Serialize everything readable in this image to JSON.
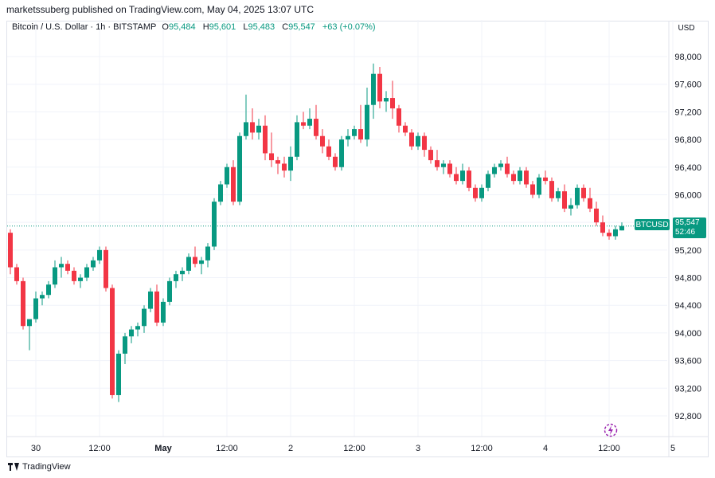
{
  "publisher": "marketssuberg published on TradingView.com, May 04, 2025 13:07 UTC",
  "legend": {
    "symbol": "Bitcoin / U.S. Dollar · 1h · BITSTAMP",
    "o_label": "O",
    "o_value": "95,484",
    "h_label": "H",
    "h_value": "95,601",
    "l_label": "L",
    "l_value": "95,483",
    "c_label": "C",
    "c_value": "95,547",
    "change": "+63 (+0.07%)"
  },
  "currency": "USD",
  "last_price": {
    "symbol": "BTCUSD",
    "price": "95,547",
    "countdown": "52:46"
  },
  "footer": {
    "brand": "TradingView"
  },
  "colors": {
    "up": "#089981",
    "down": "#f23645",
    "grid": "#f0f3fa",
    "axis_text": "#131722"
  },
  "chart_data": {
    "type": "candlestick",
    "ylim": [
      92500,
      98300
    ],
    "y_ticks": [
      92800,
      93200,
      93600,
      94000,
      94400,
      94800,
      95200,
      95600,
      96000,
      96400,
      96800,
      97200,
      97600,
      98000
    ],
    "y_tick_labels": [
      "92,800",
      "93,200",
      "93,600",
      "94,000",
      "94,400",
      "94,800",
      "95,200",
      "95,600",
      "96,000",
      "96,400",
      "96,800",
      "97,200",
      "97,600",
      "98,000"
    ],
    "x_labels": [
      {
        "i": 4,
        "text": "30"
      },
      {
        "i": 14,
        "text": "12:00"
      },
      {
        "i": 24,
        "text": "May"
      },
      {
        "i": 34,
        "text": "12:00"
      },
      {
        "i": 44,
        "text": "2"
      },
      {
        "i": 54,
        "text": "12:00"
      },
      {
        "i": 64,
        "text": "3"
      },
      {
        "i": 74,
        "text": "12:00"
      },
      {
        "i": 84,
        "text": "4"
      },
      {
        "i": 94,
        "text": "12:00"
      },
      {
        "i": 104,
        "text": "5"
      }
    ],
    "last_close": 95547,
    "candles": [
      [
        95450,
        95500,
        94850,
        94950
      ],
      [
        94950,
        95000,
        94700,
        94750
      ],
      [
        94750,
        94800,
        94050,
        94100
      ],
      [
        94100,
        94150,
        93750,
        94200
      ],
      [
        94200,
        94600,
        94150,
        94500
      ],
      [
        94500,
        94600,
        94400,
        94550
      ],
      [
        94550,
        94750,
        94500,
        94700
      ],
      [
        94700,
        95050,
        94650,
        94950
      ],
      [
        94950,
        95100,
        94800,
        95000
      ],
      [
        95000,
        95050,
        94850,
        94900
      ],
      [
        94900,
        94950,
        94700,
        94750
      ],
      [
        94750,
        94850,
        94650,
        94800
      ],
      [
        94800,
        95000,
        94750,
        94950
      ],
      [
        94950,
        95100,
        94900,
        95050
      ],
      [
        95050,
        95250,
        95000,
        95200
      ],
      [
        95200,
        95250,
        94600,
        94650
      ],
      [
        94650,
        94700,
        93050,
        93100
      ],
      [
        93100,
        93750,
        93000,
        93700
      ],
      [
        93700,
        94000,
        93550,
        93950
      ],
      [
        93950,
        94100,
        93850,
        94050
      ],
      [
        94050,
        94150,
        93950,
        94100
      ],
      [
        94100,
        94400,
        94000,
        94350
      ],
      [
        94350,
        94650,
        94300,
        94600
      ],
      [
        94600,
        94700,
        94100,
        94150
      ],
      [
        94150,
        94500,
        94100,
        94450
      ],
      [
        94450,
        94800,
        94400,
        94750
      ],
      [
        94750,
        94900,
        94650,
        94850
      ],
      [
        94850,
        94950,
        94750,
        94900
      ],
      [
        94900,
        95150,
        94850,
        95100
      ],
      [
        95100,
        95250,
        94950,
        95000
      ],
      [
        95000,
        95100,
        94850,
        95050
      ],
      [
        95050,
        95300,
        94950,
        95250
      ],
      [
        95250,
        95950,
        95200,
        95900
      ],
      [
        95900,
        96200,
        95850,
        96150
      ],
      [
        96150,
        96450,
        96100,
        96400
      ],
      [
        96400,
        96500,
        95850,
        95900
      ],
      [
        95900,
        96900,
        95850,
        96850
      ],
      [
        96850,
        97450,
        96800,
        97050
      ],
      [
        97050,
        97250,
        96800,
        96900
      ],
      [
        96900,
        97100,
        96800,
        97000
      ],
      [
        97000,
        97150,
        96500,
        96600
      ],
      [
        96600,
        96900,
        96400,
        96500
      ],
      [
        96500,
        96550,
        96300,
        96450
      ],
      [
        96450,
        96550,
        96250,
        96350
      ],
      [
        96350,
        96700,
        96200,
        96550
      ],
      [
        96550,
        97150,
        96500,
        97050
      ],
      [
        97050,
        97200,
        96950,
        97000
      ],
      [
        97000,
        97250,
        96950,
        97100
      ],
      [
        97100,
        97300,
        96800,
        96850
      ],
      [
        96850,
        96950,
        96600,
        96700
      ],
      [
        96700,
        96800,
        96500,
        96550
      ],
      [
        96550,
        96600,
        96350,
        96400
      ],
      [
        96400,
        96850,
        96350,
        96800
      ],
      [
        96800,
        96950,
        96700,
        96850
      ],
      [
        96850,
        97000,
        96800,
        96950
      ],
      [
        96950,
        97300,
        96750,
        96800
      ],
      [
        96800,
        97550,
        96700,
        97300
      ],
      [
        97300,
        97900,
        97100,
        97750
      ],
      [
        97750,
        97850,
        97250,
        97350
      ],
      [
        97350,
        97500,
        97200,
        97400
      ],
      [
        97400,
        97650,
        97100,
        97250
      ],
      [
        97250,
        97300,
        96900,
        97000
      ],
      [
        97000,
        97050,
        96850,
        96900
      ],
      [
        96900,
        96950,
        96650,
        96700
      ],
      [
        96700,
        96900,
        96650,
        96850
      ],
      [
        96850,
        96900,
        96550,
        96650
      ],
      [
        96650,
        96700,
        96450,
        96500
      ],
      [
        96500,
        96650,
        96350,
        96400
      ],
      [
        96400,
        96500,
        96300,
        96450
      ],
      [
        96450,
        96500,
        96250,
        96300
      ],
      [
        96300,
        96400,
        96150,
        96200
      ],
      [
        96200,
        96450,
        96150,
        96350
      ],
      [
        96350,
        96400,
        96050,
        96100
      ],
      [
        96100,
        96150,
        95900,
        95950
      ],
      [
        95950,
        96150,
        95900,
        96100
      ],
      [
        96100,
        96350,
        96050,
        96300
      ],
      [
        96300,
        96450,
        96250,
        96400
      ],
      [
        96400,
        96500,
        96350,
        96450
      ],
      [
        96450,
        96550,
        96250,
        96300
      ],
      [
        96300,
        96350,
        96150,
        96200
      ],
      [
        96200,
        96400,
        96150,
        96350
      ],
      [
        96350,
        96400,
        96100,
        96150
      ],
      [
        96150,
        96200,
        95950,
        96000
      ],
      [
        96000,
        96300,
        95950,
        96250
      ],
      [
        96250,
        96350,
        96150,
        96200
      ],
      [
        96200,
        96250,
        95900,
        95950
      ],
      [
        95950,
        96100,
        95900,
        96050
      ],
      [
        96050,
        96150,
        95750,
        95800
      ],
      [
        95800,
        95950,
        95700,
        95850
      ],
      [
        95850,
        96150,
        95800,
        96100
      ],
      [
        96100,
        96150,
        95900,
        95950
      ],
      [
        95950,
        96100,
        95750,
        95800
      ],
      [
        95800,
        95900,
        95550,
        95600
      ],
      [
        95600,
        95700,
        95400,
        95450
      ],
      [
        95450,
        95500,
        95350,
        95400
      ],
      [
        95400,
        95550,
        95350,
        95500
      ],
      [
        95484,
        95601,
        95483,
        95547
      ]
    ]
  }
}
